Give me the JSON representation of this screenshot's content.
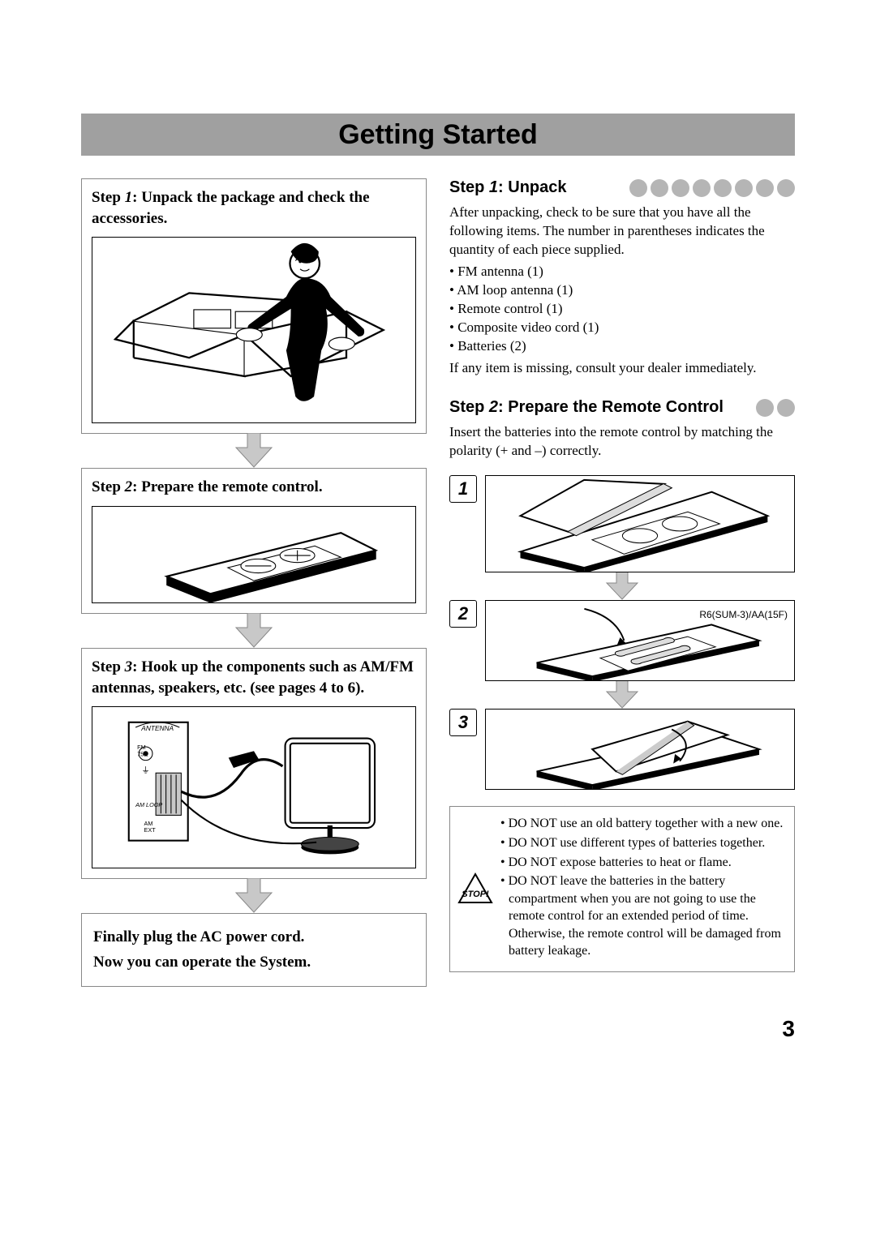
{
  "colors": {
    "title_bar_bg": "#a0a0a0",
    "border_gray": "#888888",
    "dot_gray": "#b5b5b5",
    "text": "#000000",
    "bg": "#ffffff"
  },
  "typography": {
    "title_font": "Arial",
    "title_size_pt": 26,
    "body_font": "Times New Roman",
    "body_size_pt": 12,
    "section_head_size_pt": 15
  },
  "page": {
    "title": "Getting Started",
    "number": "3"
  },
  "left_steps": [
    {
      "label": "Step",
      "num": "1",
      "text": "Unpack the package and check the accessories.",
      "has_image": true
    },
    {
      "label": "Step",
      "num": "2",
      "text": "Prepare the remote control.",
      "has_image": true
    },
    {
      "label": "Step",
      "num": "3",
      "text": "Hook up the components such as AM/FM antennas, speakers, etc. (see pages 4 to 6).",
      "has_image": true
    }
  ],
  "final_box": {
    "line1": "Finally plug the AC power cord.",
    "line2": "Now you can operate the System."
  },
  "right": {
    "section1": {
      "prefix": "Step",
      "num": "1",
      "title": "Unpack",
      "dot_count": 8,
      "intro": "After unpacking, check to be sure that you have all the following items. The number in parentheses indicates the quantity of each piece supplied.",
      "items": [
        "FM antenna (1)",
        "AM loop antenna (1)",
        "Remote control (1)",
        "Composite video cord (1)",
        "Batteries (2)"
      ],
      "outro": "If any item is missing, consult your dealer immediately."
    },
    "section2": {
      "prefix": "Step",
      "num": "2",
      "title": "Prepare the Remote Control",
      "dot_count": 2,
      "intro": "Insert the batteries into the remote control by matching the polarity (+ and –) correctly."
    },
    "remote_steps": [
      "1",
      "2",
      "3"
    ],
    "battery_label": "R6(SUM-3)/AA(15F)",
    "stop_items": [
      "DO NOT use an old battery together with a new one.",
      "DO NOT use different types of batteries together.",
      "DO NOT expose batteries to heat or flame.",
      "DO NOT leave the batteries in the battery compartment when you are not going to use the remote control for an extended period of time. Otherwise, the remote control will be damaged from battery leakage."
    ]
  }
}
